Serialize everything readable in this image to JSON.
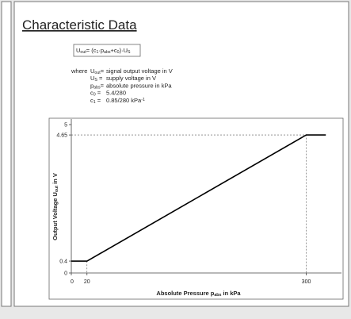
{
  "document": {
    "title": "Characteristic Data",
    "formula": [
      "U",
      {
        "sub": "out"
      },
      "= (c",
      {
        "sub": "1"
      },
      "·p",
      {
        "sub": "abs"
      },
      "+c",
      {
        "sub": "0"
      },
      ")·U",
      {
        "sub": "S"
      }
    ],
    "where": "where",
    "definitions": [
      {
        "symbol": [
          "U",
          {
            "sub": "out"
          },
          "="
        ],
        "text": [
          "signal output voltage in V"
        ]
      },
      {
        "symbol": [
          "U",
          {
            "sub": "S"
          },
          "  ="
        ],
        "text": [
          "supply voltage in V"
        ]
      },
      {
        "symbol": [
          "p",
          {
            "sub": "abs"
          },
          "="
        ],
        "text": [
          "absolute pressure in kPa"
        ]
      },
      {
        "symbol": [
          "c",
          {
            "sub": "0"
          },
          "   ="
        ],
        "text": [
          "5.4/280"
        ]
      },
      {
        "symbol": [
          "c",
          {
            "sub": "1"
          },
          "   ="
        ],
        "text": [
          "0.85/280 kPa",
          {
            "sup": "-1"
          }
        ]
      }
    ]
  },
  "chart_data": {
    "type": "line",
    "x_label": [
      "Absolute Pressure p",
      {
        "sub": "abs"
      },
      " in kPa"
    ],
    "y_label": [
      "Output Voltage U",
      {
        "sub": "out"
      },
      " in V"
    ],
    "x": [
      0,
      20,
      300,
      325
    ],
    "series": [
      {
        "color": "#000000",
        "values": [
          0.4,
          0.4,
          4.65,
          4.65
        ]
      }
    ],
    "xlim": [
      0,
      345
    ],
    "ylim": [
      0,
      5
    ],
    "xticks": [
      0,
      20,
      300
    ],
    "yticks": [
      0,
      0.4,
      4.65,
      5
    ]
  }
}
